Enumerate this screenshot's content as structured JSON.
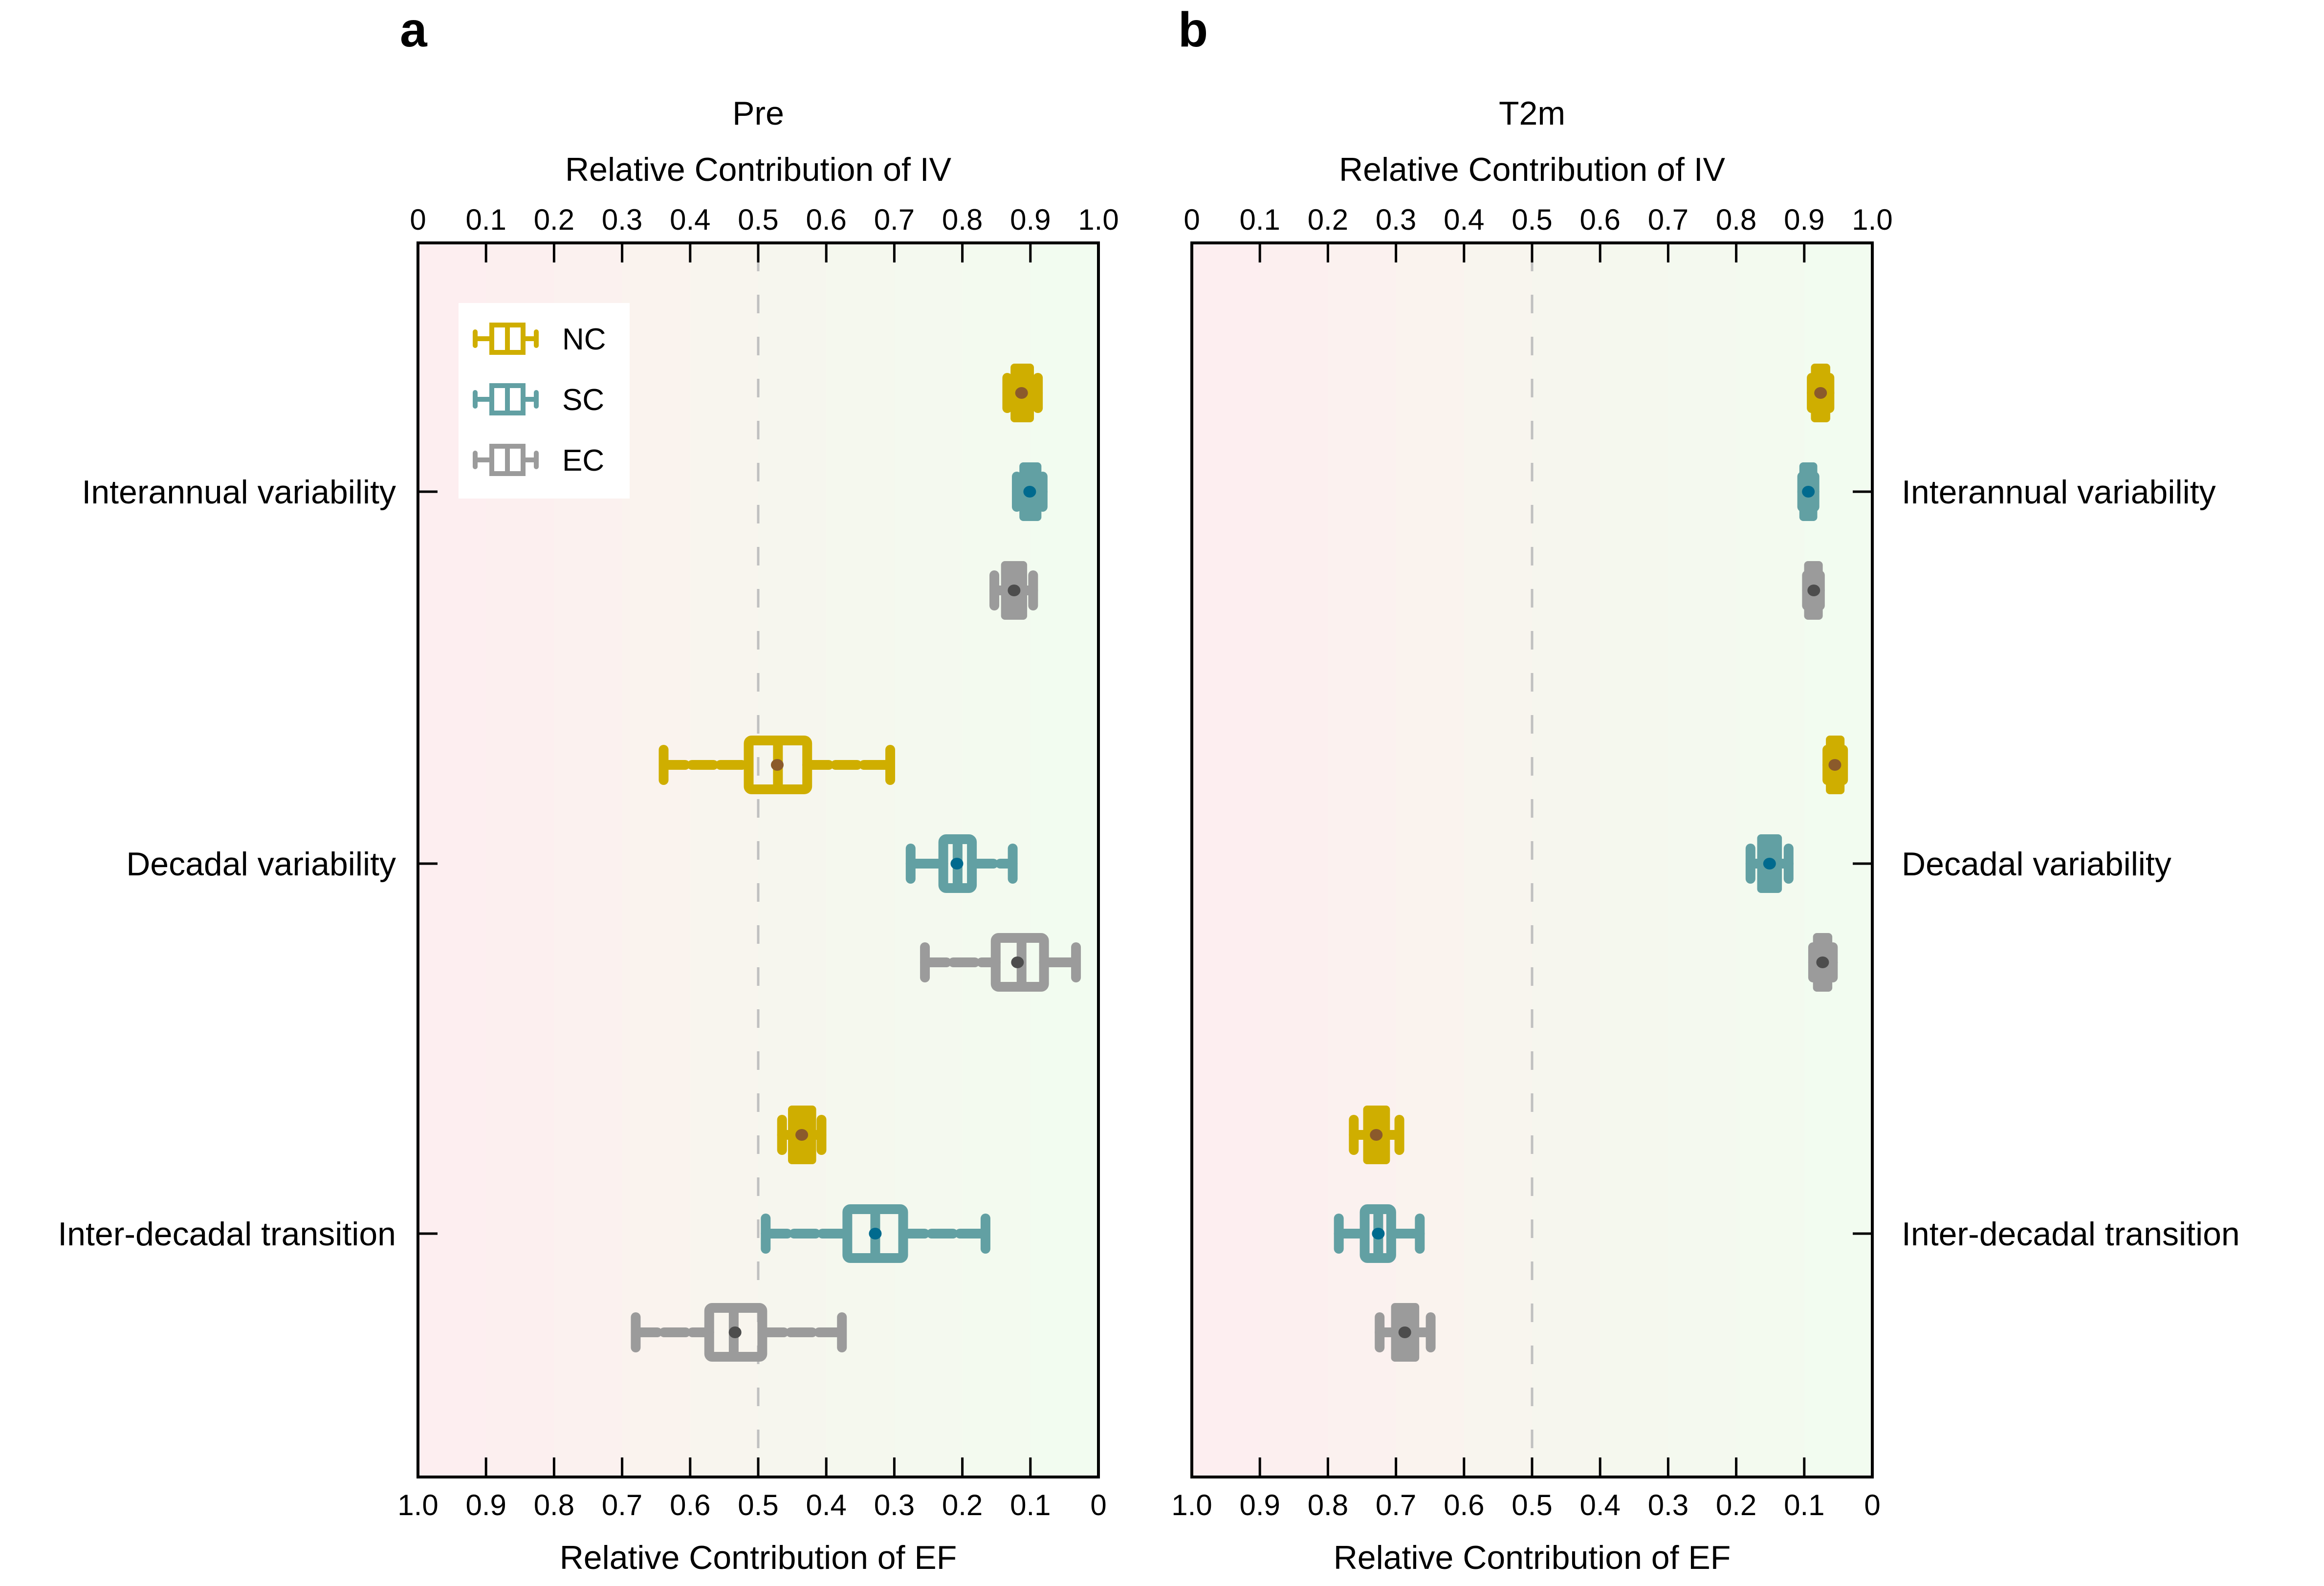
{
  "figure": {
    "panel_letters": [
      "a",
      "b"
    ]
  },
  "chart_data": [
    {
      "type": "boxplot",
      "panel": "a",
      "title": "Pre",
      "xlabel_top": "Relative Contribution of IV",
      "xlabel_bottom": "Relative Contribution of EF",
      "xlim": [
        0,
        1
      ],
      "top_ticks": [
        "0",
        "0.1",
        "0.2",
        "0.3",
        "0.4",
        "0.5",
        "0.6",
        "0.7",
        "0.8",
        "0.9",
        "1.0"
      ],
      "bottom_ticks": [
        "1.0",
        "0.9",
        "0.8",
        "0.7",
        "0.6",
        "0.5",
        "0.4",
        "0.3",
        "0.2",
        "0.1",
        "0"
      ],
      "reference_line": 0.5,
      "row_label_side": "left",
      "categories": [
        "Interannual variability",
        "Decadal variability",
        "Inter-decadal transition"
      ],
      "legend": {
        "placement": "top-left",
        "entries": [
          "NC",
          "SC",
          "EC"
        ]
      },
      "series": [
        {
          "name": "NC",
          "color": "#CFAE00",
          "mean_color": "#8B5A2B",
          "boxes": [
            {
              "whisker_low": 0.866,
              "q1": 0.878,
              "median": 0.888,
              "q3": 0.898,
              "whisker_high": 0.911,
              "mean": 0.887
            },
            {
              "whisker_low": 0.361,
              "q1": 0.486,
              "median": 0.529,
              "q3": 0.572,
              "whisker_high": 0.694,
              "mean": 0.528
            },
            {
              "whisker_low": 0.535,
              "q1": 0.551,
              "median": 0.564,
              "q3": 0.578,
              "whisker_high": 0.593,
              "mean": 0.564
            }
          ]
        },
        {
          "name": "SC",
          "color": "#62A0A3",
          "mean_color": "#006A8E",
          "boxes": [
            {
              "whisker_low": 0.88,
              "q1": 0.891,
              "median": 0.899,
              "q3": 0.909,
              "whisker_high": 0.918,
              "mean": 0.899
            },
            {
              "whisker_low": 0.724,
              "q1": 0.772,
              "median": 0.793,
              "q3": 0.814,
              "whisker_high": 0.874,
              "mean": 0.792
            },
            {
              "whisker_low": 0.511,
              "q1": 0.631,
              "median": 0.672,
              "q3": 0.713,
              "whisker_high": 0.834,
              "mean": 0.672
            }
          ]
        },
        {
          "name": "EC",
          "color": "#9B9B9B",
          "mean_color": "#4D4D4D",
          "boxes": [
            {
              "whisker_low": 0.847,
              "q1": 0.864,
              "median": 0.876,
              "q3": 0.888,
              "whisker_high": 0.904,
              "mean": 0.876
            },
            {
              "whisker_low": 0.745,
              "q1": 0.849,
              "median": 0.887,
              "q3": 0.92,
              "whisker_high": 0.967,
              "mean": 0.881
            },
            {
              "whisker_low": 0.32,
              "q1": 0.428,
              "median": 0.464,
              "q3": 0.506,
              "whisker_high": 0.623,
              "mean": 0.466
            }
          ]
        }
      ]
    },
    {
      "type": "boxplot",
      "panel": "b",
      "title": "T2m",
      "xlabel_top": "Relative Contribution of IV",
      "xlabel_bottom": "Relative Contribution of EF",
      "xlim": [
        0,
        1
      ],
      "top_ticks": [
        "0",
        "0.1",
        "0.2",
        "0.3",
        "0.4",
        "0.5",
        "0.6",
        "0.7",
        "0.8",
        "0.9",
        "1.0"
      ],
      "bottom_ticks": [
        "1.0",
        "0.9",
        "0.8",
        "0.7",
        "0.6",
        "0.5",
        "0.4",
        "0.3",
        "0.2",
        "0.1",
        "0"
      ],
      "reference_line": 0.5,
      "row_label_side": "right",
      "categories": [
        "Interannual variability",
        "Decadal variability",
        "Inter-decadal transition"
      ],
      "series": [
        {
          "name": "NC",
          "color": "#CFAE00",
          "mean_color": "#8B5A2B",
          "boxes": [
            {
              "whisker_low": 0.911,
              "q1": 0.917,
              "median": 0.924,
              "q3": 0.931,
              "whisker_high": 0.937,
              "mean": 0.924
            },
            {
              "whisker_low": 0.934,
              "q1": 0.939,
              "median": 0.945,
              "q3": 0.952,
              "whisker_high": 0.957,
              "mean": 0.945
            },
            {
              "whisker_low": 0.238,
              "q1": 0.259,
              "median": 0.271,
              "q3": 0.284,
              "whisker_high": 0.305,
              "mean": 0.271
            }
          ]
        },
        {
          "name": "SC",
          "color": "#62A0A3",
          "mean_color": "#006A8E",
          "boxes": [
            {
              "whisker_low": 0.897,
              "q1": 0.9,
              "median": 0.906,
              "q3": 0.912,
              "whisker_high": 0.915,
              "mean": 0.906
            },
            {
              "whisker_low": 0.821,
              "q1": 0.838,
              "median": 0.849,
              "q3": 0.86,
              "whisker_high": 0.877,
              "mean": 0.849
            },
            {
              "whisker_low": 0.216,
              "q1": 0.254,
              "median": 0.274,
              "q3": 0.293,
              "whisker_high": 0.335,
              "mean": 0.274
            }
          ]
        },
        {
          "name": "EC",
          "color": "#9B9B9B",
          "mean_color": "#4D4D4D",
          "boxes": [
            {
              "whisker_low": 0.904,
              "q1": 0.907,
              "median": 0.914,
              "q3": 0.92,
              "whisker_high": 0.923,
              "mean": 0.914
            },
            {
              "whisker_low": 0.913,
              "q1": 0.92,
              "median": 0.927,
              "q3": 0.934,
              "whisker_high": 0.942,
              "mean": 0.927
            },
            {
              "whisker_low": 0.276,
              "q1": 0.3,
              "median": 0.313,
              "q3": 0.327,
              "whisker_high": 0.351,
              "mean": 0.313
            }
          ]
        }
      ]
    }
  ],
  "background_colors": [
    "#FDEEF0",
    "#FCEFEF",
    "#FBF1EF",
    "#FAF3EE",
    "#F8F5EE",
    "#F6F6EE",
    "#F5F8EE",
    "#F4F9EF",
    "#F3FAEF",
    "#F2FCF0"
  ]
}
